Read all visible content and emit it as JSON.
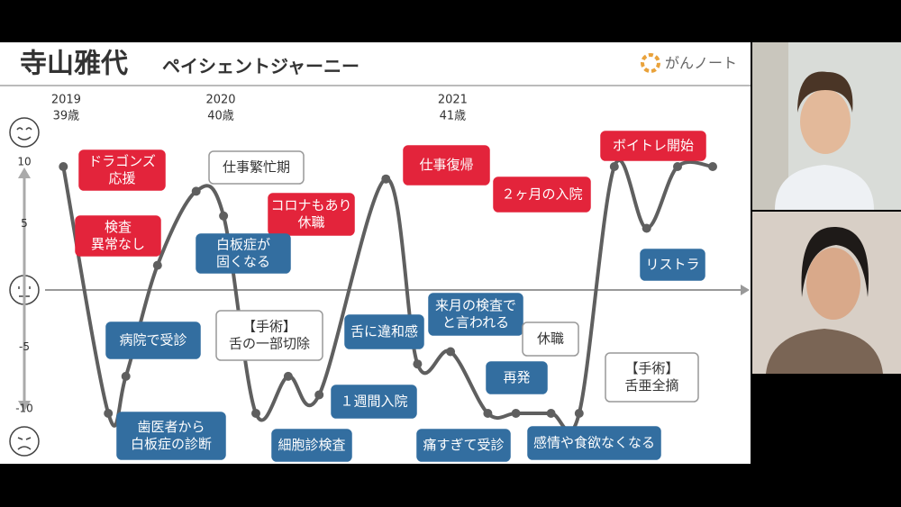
{
  "slide": {
    "title": "寺山雅代",
    "subtitle": "ペイシェントジャーニー",
    "logo": "がんノート"
  },
  "chart_data": {
    "type": "line",
    "xlim": [
      0,
      100
    ],
    "ylim": [
      -10,
      10
    ],
    "yticks": [
      10,
      5,
      -5,
      -10
    ],
    "xticks": [
      {
        "value": 3,
        "label": "2019"
      },
      {
        "value": 25,
        "label": "2020"
      },
      {
        "value": 58,
        "label": "2021"
      }
    ],
    "x_tick_ages": [
      "39歳",
      "40歳",
      "41歳"
    ],
    "color": "#5f5f5f",
    "series": [
      {
        "x": [
          2.6,
          9,
          11.5,
          16,
          21.5,
          25.4,
          30,
          34.6,
          39,
          48.5,
          53,
          57.7,
          63,
          67,
          72,
          76,
          81,
          85.6,
          90,
          95
        ],
        "values": [
          10,
          -10,
          -7,
          2,
          8,
          6,
          -10,
          -7,
          -8.5,
          9,
          -6,
          -5,
          -10,
          -10,
          -10,
          -10,
          10,
          5,
          10,
          10
        ]
      }
    ],
    "annotations": [
      {
        "style": "red",
        "lines": [
          "ドラゴンズ",
          "応援"
        ]
      },
      {
        "style": "red",
        "lines": [
          "検査",
          "異常なし"
        ]
      },
      {
        "style": "white",
        "lines": [
          "仕事繁忙期"
        ]
      },
      {
        "style": "red",
        "lines": [
          "コロナもあり",
          "休職"
        ]
      },
      {
        "style": "blue",
        "lines": [
          "白板症が",
          "固くなる"
        ]
      },
      {
        "style": "blue",
        "lines": [
          "病院で受診"
        ]
      },
      {
        "style": "blue",
        "lines": [
          "歯医者から",
          "白板症の診断"
        ]
      },
      {
        "style": "white",
        "lines": [
          "【手術】",
          "舌の一部切除"
        ]
      },
      {
        "style": "blue",
        "lines": [
          "細胞診検査"
        ]
      },
      {
        "style": "blue",
        "lines": [
          "１週間入院"
        ]
      },
      {
        "style": "red",
        "lines": [
          "仕事復帰"
        ]
      },
      {
        "style": "blue",
        "lines": [
          "舌に違和感"
        ]
      },
      {
        "style": "blue",
        "lines": [
          "来月の検査で",
          "と言われる"
        ]
      },
      {
        "style": "white",
        "lines": [
          "休職"
        ]
      },
      {
        "style": "blue",
        "lines": [
          "再発"
        ]
      },
      {
        "style": "blue",
        "lines": [
          "痛すぎて受診"
        ]
      },
      {
        "style": "white",
        "lines": [
          "【手術】",
          "舌亜全摘"
        ]
      },
      {
        "style": "blue",
        "lines": [
          "感情や食欲なくなる"
        ]
      },
      {
        "style": "red",
        "lines": [
          "２ヶ月の入院"
        ]
      },
      {
        "style": "red",
        "lines": [
          "ボイトレ開始"
        ]
      },
      {
        "style": "blue",
        "lines": [
          "リストラ"
        ]
      }
    ]
  }
}
